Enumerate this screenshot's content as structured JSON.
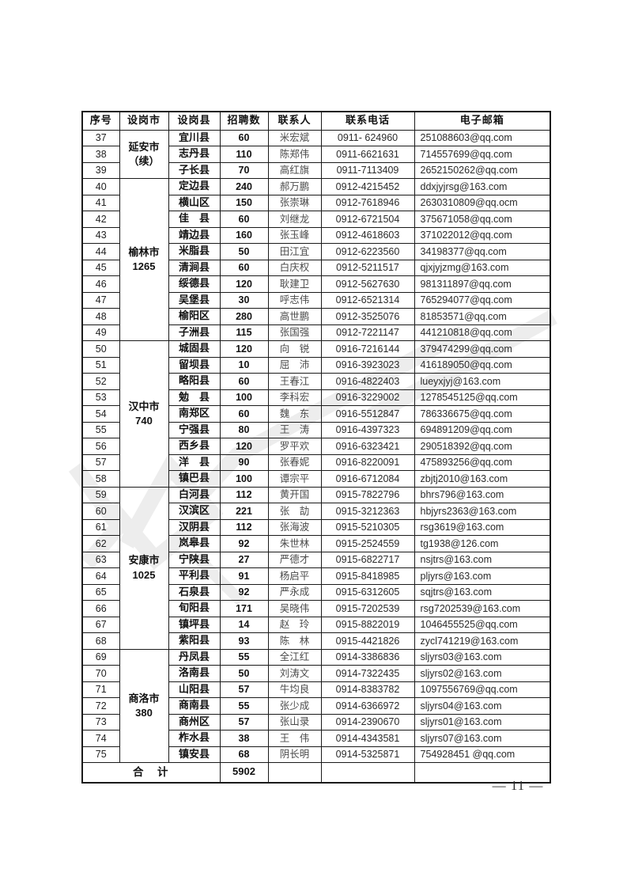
{
  "page": {
    "number_label": "— 11 —"
  },
  "table": {
    "headers": [
      "序号",
      "设岗市",
      "设岗县",
      "招聘数",
      "联系人",
      "联系电话",
      "电子邮箱"
    ],
    "groups": [
      {
        "city": "延安市",
        "city_sub": "（续）",
        "rows": [
          {
            "no": "37",
            "county": "宜川县",
            "count": "60",
            "contact": "米宏斌",
            "phone": "0911- 624960",
            "email": "251088603@qq.com"
          },
          {
            "no": "38",
            "county": "志丹县",
            "count": "110",
            "contact": "陈郑伟",
            "phone": "0911-6621631",
            "email": "714557699@qq.com"
          },
          {
            "no": "39",
            "county": "子长县",
            "count": "70",
            "contact": "高红旗",
            "phone": "0911-7113409",
            "email": "2652150262@qq.com"
          }
        ]
      },
      {
        "city": "榆林市",
        "city_sub": "1265",
        "rows": [
          {
            "no": "40",
            "county": "定边县",
            "count": "240",
            "contact": "郝万鹏",
            "phone": "0912-4215452",
            "email": "ddxjyjrsg@163.com"
          },
          {
            "no": "41",
            "county": "横山区",
            "count": "150",
            "contact": "张崇琳",
            "phone": "0912-7618946",
            "email": "2630310809@qq.ocm"
          },
          {
            "no": "42",
            "county": "佳　县",
            "count": "60",
            "contact": "刘继龙",
            "phone": "0912-6721504",
            "email": "375671058@qq.com"
          },
          {
            "no": "43",
            "county": "靖边县",
            "count": "160",
            "contact": "张玉峰",
            "phone": "0912-4618603",
            "email": "371022012@qq.com"
          },
          {
            "no": "44",
            "county": "米脂县",
            "count": "50",
            "contact": "田江宜",
            "phone": "0912-6223560",
            "email": "34198377@qq.com"
          },
          {
            "no": "45",
            "county": "清涧县",
            "count": "60",
            "contact": "白庆权",
            "phone": "0912-5211517",
            "email": "qjxjyjzmg@163.com"
          },
          {
            "no": "46",
            "county": "绥德县",
            "count": "120",
            "contact": "耿建卫",
            "phone": "0912-5627630",
            "email": "981311897@qq.com"
          },
          {
            "no": "47",
            "county": "吴堡县",
            "count": "30",
            "contact": "呼志伟",
            "phone": "0912-6521314",
            "email": "765294077@qq.com"
          },
          {
            "no": "48",
            "county": "榆阳区",
            "count": "280",
            "contact": "高世鹏",
            "phone": "0912-3525076",
            "email": "81853571@qq.com"
          },
          {
            "no": "49",
            "county": "子洲县",
            "count": "115",
            "contact": "张国强",
            "phone": "0912-7221147",
            "email": "441210818@qq.com"
          }
        ]
      },
      {
        "city": "汉中市",
        "city_sub": "740",
        "rows": [
          {
            "no": "50",
            "county": "城固县",
            "count": "120",
            "contact": "向　锐",
            "phone": "0916-7216144",
            "email": "379474299@qq.com"
          },
          {
            "no": "51",
            "county": "留坝县",
            "count": "10",
            "contact": "屈　沛",
            "phone": "0916-3923023",
            "email": "416189050@qq.com"
          },
          {
            "no": "52",
            "county": "略阳县",
            "count": "60",
            "contact": "王春江",
            "phone": "0916-4822403",
            "email": "lueyxjyj@163.com"
          },
          {
            "no": "53",
            "county": "勉　县",
            "count": "100",
            "contact": "李科宏",
            "phone": "0916-3229002",
            "email": "1278545125@qq.com"
          },
          {
            "no": "54",
            "county": "南郑区",
            "count": "60",
            "contact": "魏　东",
            "phone": "0916-5512847",
            "email": "786336675@qq.com"
          },
          {
            "no": "55",
            "county": "宁强县",
            "count": "80",
            "contact": "王　涛",
            "phone": "0916-4397323",
            "email": "694891209@qq.com"
          },
          {
            "no": "56",
            "county": "西乡县",
            "count": "120",
            "contact": "罗平欢",
            "phone": "0916-6323421",
            "email": "290518392@qq.com"
          },
          {
            "no": "57",
            "county": "洋　县",
            "count": "90",
            "contact": "张春妮",
            "phone": "0916-8220091",
            "email": "475893256@qq.com"
          },
          {
            "no": "58",
            "county": "镇巴县",
            "count": "100",
            "contact": "谭宗平",
            "phone": "0916-6712084",
            "email": "zbjtj2010@163.com"
          }
        ]
      },
      {
        "city": "安康市",
        "city_sub": "1025",
        "rows": [
          {
            "no": "59",
            "county": "白河县",
            "count": "112",
            "contact": "黄开国",
            "phone": "0915-7822796",
            "email": "bhrs796@163.com"
          },
          {
            "no": "60",
            "county": "汉滨区",
            "count": "221",
            "contact": "张　劼",
            "phone": "0915-3212363",
            "email": "hbjyrs2363@163.com"
          },
          {
            "no": "61",
            "county": "汉阴县",
            "count": "112",
            "contact": "张海波",
            "phone": "0915-5210305",
            "email": "rsg3619@163.com"
          },
          {
            "no": "62",
            "county": "岚皋县",
            "count": "92",
            "contact": "朱世林",
            "phone": "0915-2524559",
            "email": "tg1938@126.com"
          },
          {
            "no": "63",
            "county": "宁陕县",
            "count": "27",
            "contact": "严德才",
            "phone": "0915-6822717",
            "email": "nsjtrs@163.com"
          },
          {
            "no": "64",
            "county": "平利县",
            "count": "91",
            "contact": "杨启平",
            "phone": "0915-8418985",
            "email": "pljyrs@163.com"
          },
          {
            "no": "65",
            "county": "石泉县",
            "count": "92",
            "contact": "严永成",
            "phone": "0915-6312605",
            "email": "sqjtrs@163.com"
          },
          {
            "no": "66",
            "county": "旬阳县",
            "count": "171",
            "contact": "吴晓伟",
            "phone": "0915-7202539",
            "email": "rsg7202539@163.com"
          },
          {
            "no": "67",
            "county": "镇坪县",
            "count": "14",
            "contact": "赵　玲",
            "phone": "0915-8822019",
            "email": "1046455525@qq.com"
          },
          {
            "no": "68",
            "county": "紫阳县",
            "count": "93",
            "contact": "陈　林",
            "phone": "0915-4421826",
            "email": "zycl741219@163.com"
          }
        ]
      },
      {
        "city": "商洛市",
        "city_sub": "380",
        "rows": [
          {
            "no": "69",
            "county": "丹凤县",
            "count": "55",
            "contact": "全江红",
            "phone": "0914-3386836",
            "email": "sljyrs03@163.com"
          },
          {
            "no": "70",
            "county": "洛南县",
            "count": "50",
            "contact": "刘涛文",
            "phone": "0914-7322435",
            "email": "sljyrs02@163.com"
          },
          {
            "no": "71",
            "county": "山阳县",
            "count": "57",
            "contact": "牛均良",
            "phone": "0914-8383782",
            "email": "1097556769@qq.com"
          },
          {
            "no": "72",
            "county": "商南县",
            "count": "55",
            "contact": "张少成",
            "phone": "0914-6366972",
            "email": "sljyrs04@163.com"
          },
          {
            "no": "73",
            "county": "商州区",
            "count": "57",
            "contact": "张山录",
            "phone": "0914-2390670",
            "email": "sljyrs01@163.com"
          },
          {
            "no": "74",
            "county": "柞水县",
            "count": "38",
            "contact": "王　伟",
            "phone": "0914-4343581",
            "email": "sljyrs07@163.com"
          },
          {
            "no": "75",
            "county": "镇安县",
            "count": "68",
            "contact": "阴长明",
            "phone": "0914-5325871",
            "email": "754928451 @qq.com"
          }
        ]
      }
    ],
    "total_label": "合　计",
    "total_value": "5902"
  }
}
